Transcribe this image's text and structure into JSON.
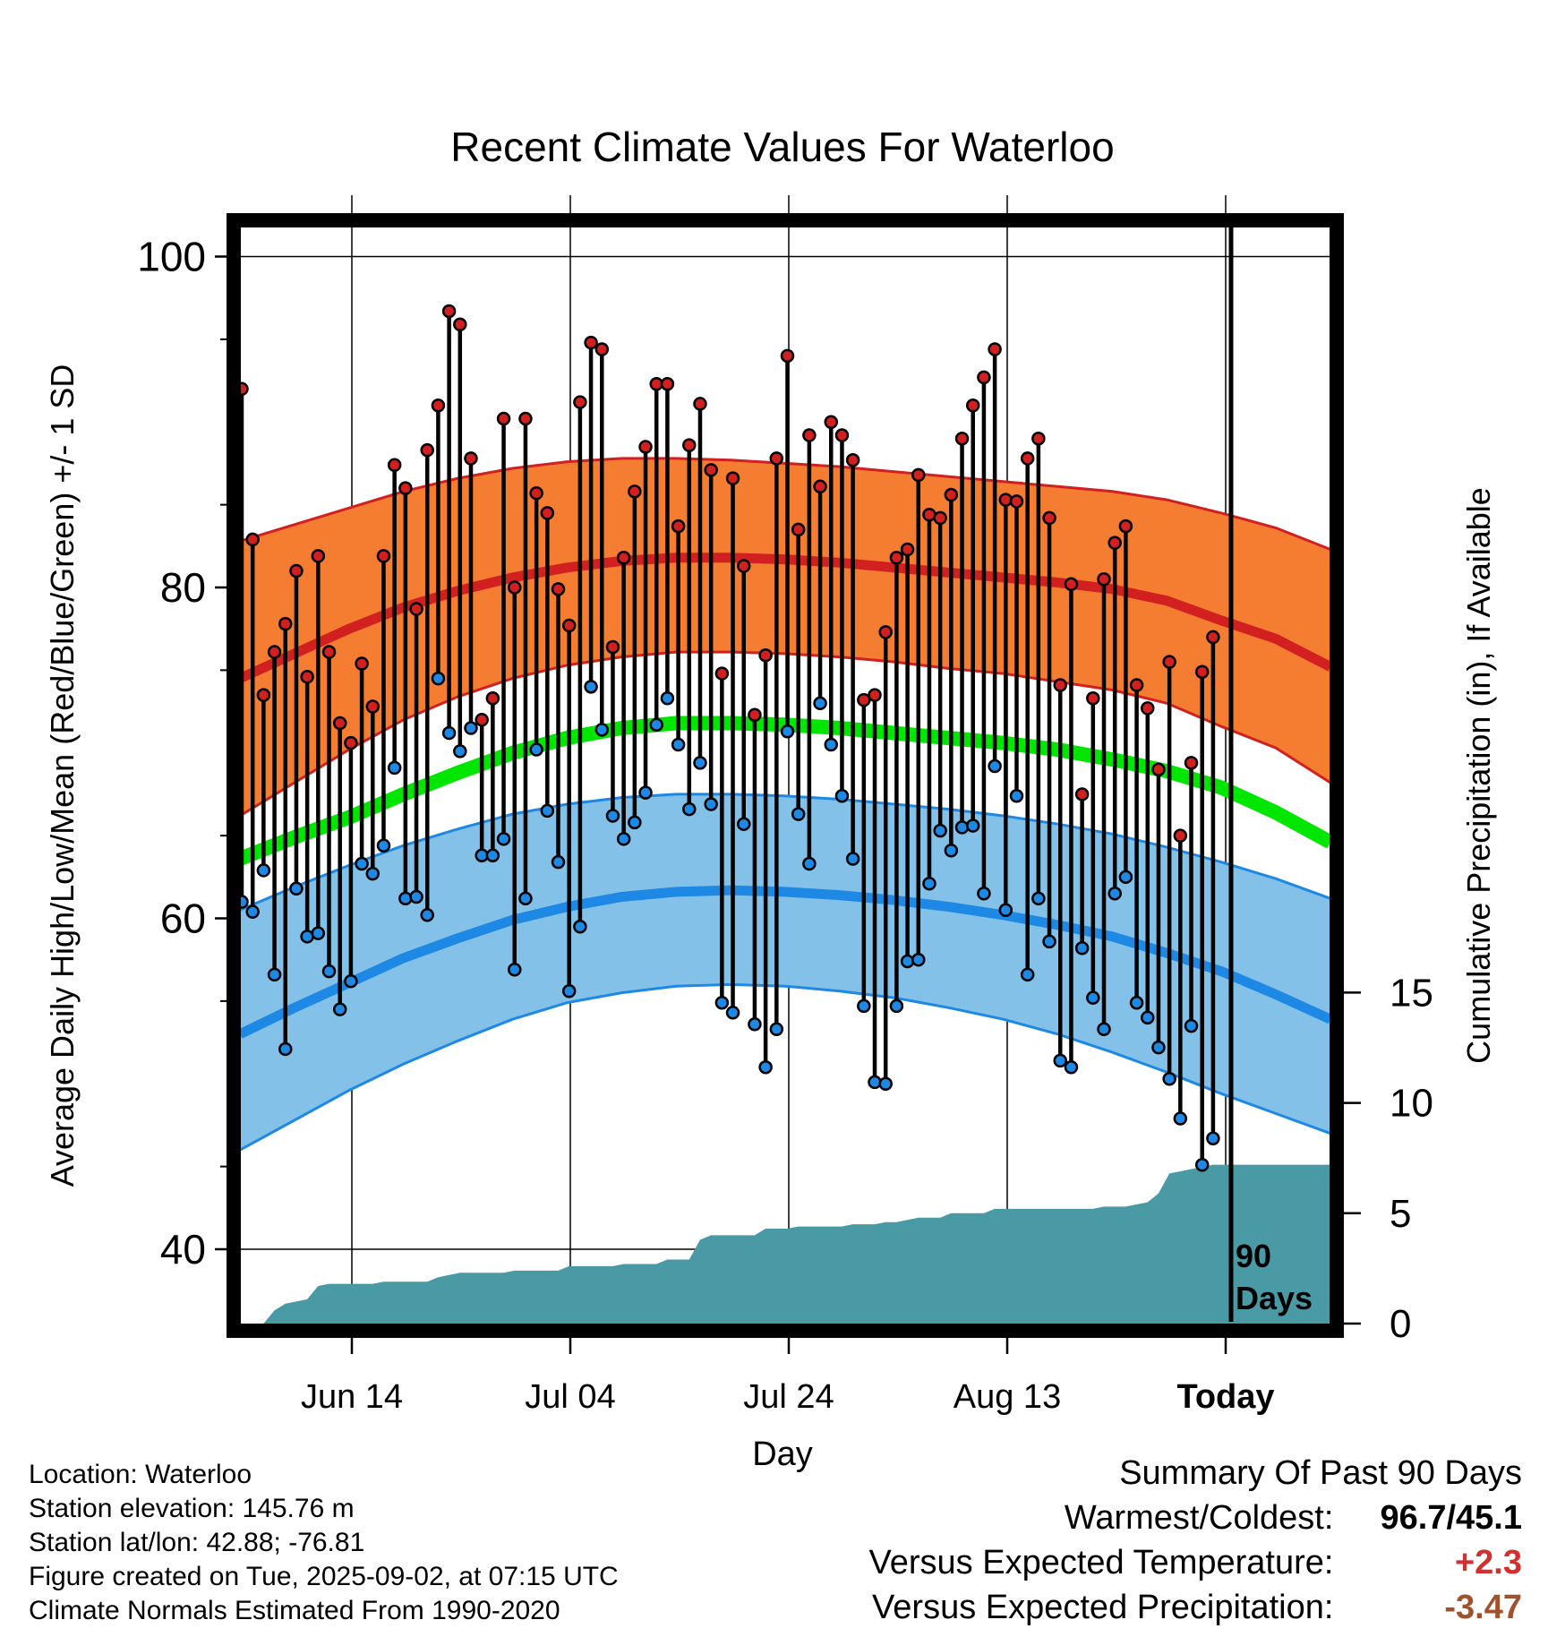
{
  "chart_data": {
    "type": "line",
    "title": "Recent Climate Values For Waterloo",
    "xlabel": "Day",
    "ylabel": "Average Daily High/Low/Mean (Red/Blue/Green) +/- 1 SD",
    "y2label": "Cumulative Precipitation (in), If Available",
    "ylim": [
      35,
      103
    ],
    "y_ticks": [
      40,
      60,
      80,
      100
    ],
    "y2_ticks": [
      0,
      5,
      10,
      15
    ],
    "x_tick_labels": [
      "Jun 14",
      "Jul 04",
      "Jul 24",
      "Aug 13",
      "Today"
    ],
    "today_marker": {
      "label_line1": "90",
      "label_line2": "Days"
    },
    "normals": {
      "high": [
        74.5,
        76.0,
        77.5,
        78.8,
        79.8,
        80.6,
        81.2,
        81.6,
        81.8,
        81.8,
        81.7,
        81.5,
        81.2,
        80.9,
        80.6,
        80.3,
        79.9,
        79.2,
        78.0,
        76.9,
        75.2
      ],
      "high_sd_upper": [
        82.8,
        83.8,
        84.8,
        85.8,
        86.6,
        87.2,
        87.6,
        87.8,
        87.8,
        87.7,
        87.5,
        87.3,
        87.0,
        86.7,
        86.4,
        86.1,
        85.8,
        85.3,
        84.5,
        83.6,
        82.3
      ],
      "high_sd_lower": [
        66.2,
        68.2,
        70.2,
        72.0,
        73.4,
        74.5,
        75.3,
        75.8,
        76.1,
        76.1,
        76.0,
        75.8,
        75.5,
        75.1,
        74.8,
        74.3,
        73.8,
        73.0,
        71.6,
        70.3,
        68.2
      ],
      "mean": [
        63.6,
        64.9,
        66.1,
        67.5,
        68.8,
        70.0,
        70.9,
        71.5,
        71.8,
        71.8,
        71.7,
        71.5,
        71.2,
        70.9,
        70.6,
        70.2,
        69.6,
        68.9,
        67.9,
        66.4,
        64.6
      ],
      "low": [
        53.0,
        54.6,
        56.1,
        57.6,
        58.8,
        59.9,
        60.7,
        61.3,
        61.6,
        61.7,
        61.6,
        61.4,
        61.1,
        60.7,
        60.2,
        59.6,
        58.9,
        57.9,
        56.8,
        55.4,
        53.9
      ],
      "low_sd_upper": [
        60.5,
        61.9,
        63.2,
        64.4,
        65.4,
        66.3,
        66.9,
        67.3,
        67.5,
        67.5,
        67.4,
        67.2,
        66.9,
        66.6,
        66.2,
        65.7,
        65.1,
        64.3,
        63.4,
        62.4,
        61.2
      ],
      "low_sd_lower": [
        46.0,
        47.8,
        49.6,
        51.2,
        52.6,
        53.9,
        54.9,
        55.5,
        55.9,
        56.0,
        55.9,
        55.6,
        55.2,
        54.6,
        53.9,
        53.0,
        51.9,
        50.7,
        49.4,
        48.2,
        47.0
      ]
    },
    "series": [
      {
        "name": "High",
        "values": [
          92,
          82.9,
          73.5,
          76.1,
          77.8,
          81.0,
          74.6,
          81.9,
          76.1,
          71.8,
          70.6,
          75.4,
          72.8,
          81.9,
          87.4,
          86.0,
          78.7,
          88.3,
          91.0,
          96.7,
          95.9,
          87.8,
          72.0,
          73.3,
          90.2,
          80.0,
          90.2,
          85.7,
          84.5,
          79.9,
          77.7,
          91.2,
          94.8,
          94.4,
          76.4,
          81.8,
          85.8,
          88.5,
          92.3,
          92.3,
          83.7,
          88.6,
          91.1,
          87.1,
          74.8,
          86.6,
          81.3,
          72.3,
          75.9,
          87.8,
          94.0,
          83.5,
          89.2,
          86.1,
          90.0,
          89.2,
          87.7,
          73.2,
          73.5,
          77.3,
          81.8,
          82.3,
          86.8,
          84.4,
          84.2,
          85.6,
          89.0,
          91.0,
          92.7,
          94.4,
          85.3,
          85.2,
          87.8,
          89.0,
          84.2,
          74.1,
          80.2,
          67.5,
          73.3,
          80.5,
          82.7,
          83.7,
          74.1,
          72.7,
          69.0,
          75.5,
          65.0,
          69.4,
          74.9,
          77.0
        ],
        "color": "#d21f1f"
      },
      {
        "name": "Low",
        "values": [
          61.0,
          60.4,
          62.9,
          56.6,
          52.1,
          61.8,
          58.9,
          59.1,
          56.8,
          54.5,
          56.2,
          63.3,
          62.7,
          64.4,
          69.1,
          61.2,
          61.3,
          60.2,
          74.5,
          71.2,
          70.1,
          71.5,
          63.8,
          63.8,
          64.8,
          56.9,
          61.2,
          70.2,
          66.5,
          63.4,
          55.6,
          59.5,
          74.0,
          71.4,
          66.2,
          64.8,
          65.8,
          67.6,
          71.7,
          73.3,
          70.5,
          66.6,
          69.4,
          66.9,
          54.9,
          54.3,
          65.7,
          53.6,
          51.0,
          53.3,
          71.3,
          66.3,
          63.3,
          73.0,
          70.5,
          67.4,
          63.6,
          54.7,
          50.1,
          50.0,
          54.7,
          57.4,
          57.5,
          62.1,
          65.3,
          64.1,
          65.5,
          65.6,
          61.5,
          69.2,
          60.5,
          67.4,
          56.6,
          61.2,
          58.6,
          51.4,
          51.0,
          58.2,
          55.2,
          53.3,
          61.5,
          62.5,
          54.9,
          54.0,
          52.2,
          50.3,
          47.9,
          53.5,
          45.1,
          46.7
        ],
        "color": "#1e88e5"
      }
    ],
    "cumulative_precip": [
      0,
      0,
      0,
      0.6,
      0.9,
      1.0,
      1.1,
      1.7,
      1.8,
      1.8,
      1.8,
      1.8,
      1.8,
      1.9,
      1.9,
      1.9,
      1.9,
      1.9,
      2.1,
      2.2,
      2.3,
      2.3,
      2.3,
      2.3,
      2.3,
      2.4,
      2.4,
      2.4,
      2.4,
      2.4,
      2.6,
      2.6,
      2.6,
      2.6,
      2.6,
      2.7,
      2.7,
      2.7,
      2.7,
      2.9,
      2.9,
      2.9,
      3.8,
      4.0,
      4.0,
      4.0,
      4.0,
      4.0,
      4.3,
      4.3,
      4.3,
      4.4,
      4.4,
      4.4,
      4.4,
      4.4,
      4.5,
      4.5,
      4.5,
      4.6,
      4.6,
      4.7,
      4.8,
      4.8,
      4.8,
      5.0,
      5.0,
      5.0,
      5.0,
      5.2,
      5.2,
      5.2,
      5.2,
      5.2,
      5.2,
      5.2,
      5.2,
      5.2,
      5.2,
      5.3,
      5.3,
      5.3,
      5.4,
      5.5,
      5.9,
      6.8,
      6.9,
      7.0,
      7.1,
      7.2
    ]
  },
  "info": {
    "location": "Location: Waterloo",
    "elevation": "Station elevation: 145.76 m",
    "latlon": "Station lat/lon: 42.88; -76.81",
    "created": "Figure created on Tue, 2025-09-02, at 07:15 UTC",
    "normals_period": "Climate Normals Estimated From 1990-2020"
  },
  "summary": {
    "heading": "Summary Of Past 90 Days",
    "warm_cold_label": "Warmest/Coldest:",
    "warm_cold_value": "96.7/45.1",
    "temp_label": "Versus Expected Temperature:",
    "temp_value": "+2.3",
    "temp_color": "#d32f2f",
    "precip_label": "Versus Expected Precipitation:",
    "precip_value": "-3.47",
    "precip_color": "#a0522d"
  },
  "colors": {
    "high_band": "#f47d32",
    "high_line": "#d21f1f",
    "mean_line": "#00e600",
    "low_band": "#84c1e8",
    "low_line": "#1e88e5",
    "precip_fill": "#4a9aa5"
  }
}
